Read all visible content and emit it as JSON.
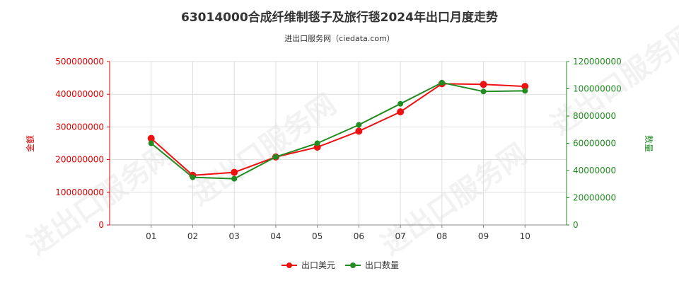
{
  "title": "63014000合成纤维制毯子及旅行毯2024年出口月度走势",
  "subtitle": "进出口服务网（ciedata.com）",
  "watermark": "进出口服务网",
  "colors": {
    "left_axis": "#dd0000",
    "right_axis": "#228b22",
    "usd_series": "#ee1111",
    "qty_series": "#228b22",
    "grid": "#dddddd"
  },
  "chart_data": {
    "type": "line",
    "categories": [
      "01",
      "02",
      "03",
      "04",
      "05",
      "06",
      "07",
      "08",
      "09",
      "10"
    ],
    "ylabel": "金额",
    "y2label": "数量",
    "ylim": [
      0,
      500000000
    ],
    "y2lim": [
      0,
      120000000
    ],
    "yticks": [
      "0",
      "100000000",
      "200000000",
      "300000000",
      "400000000",
      "500000000"
    ],
    "y2ticks": [
      "0",
      "20000000",
      "40000000",
      "60000000",
      "80000000",
      "100000000",
      "120000000"
    ],
    "grid": true,
    "legend_position": "bottom-center",
    "series": [
      {
        "name": "出口美元",
        "axis": "left",
        "values": [
          265000000,
          152000000,
          161000000,
          208000000,
          238000000,
          287000000,
          346000000,
          432000000,
          430000000,
          424000000
        ]
      },
      {
        "name": "出口数量",
        "axis": "right",
        "values": [
          60000000,
          35000000,
          34000000,
          50000000,
          60000000,
          73500000,
          89000000,
          104500000,
          98000000,
          98500000
        ]
      }
    ]
  }
}
